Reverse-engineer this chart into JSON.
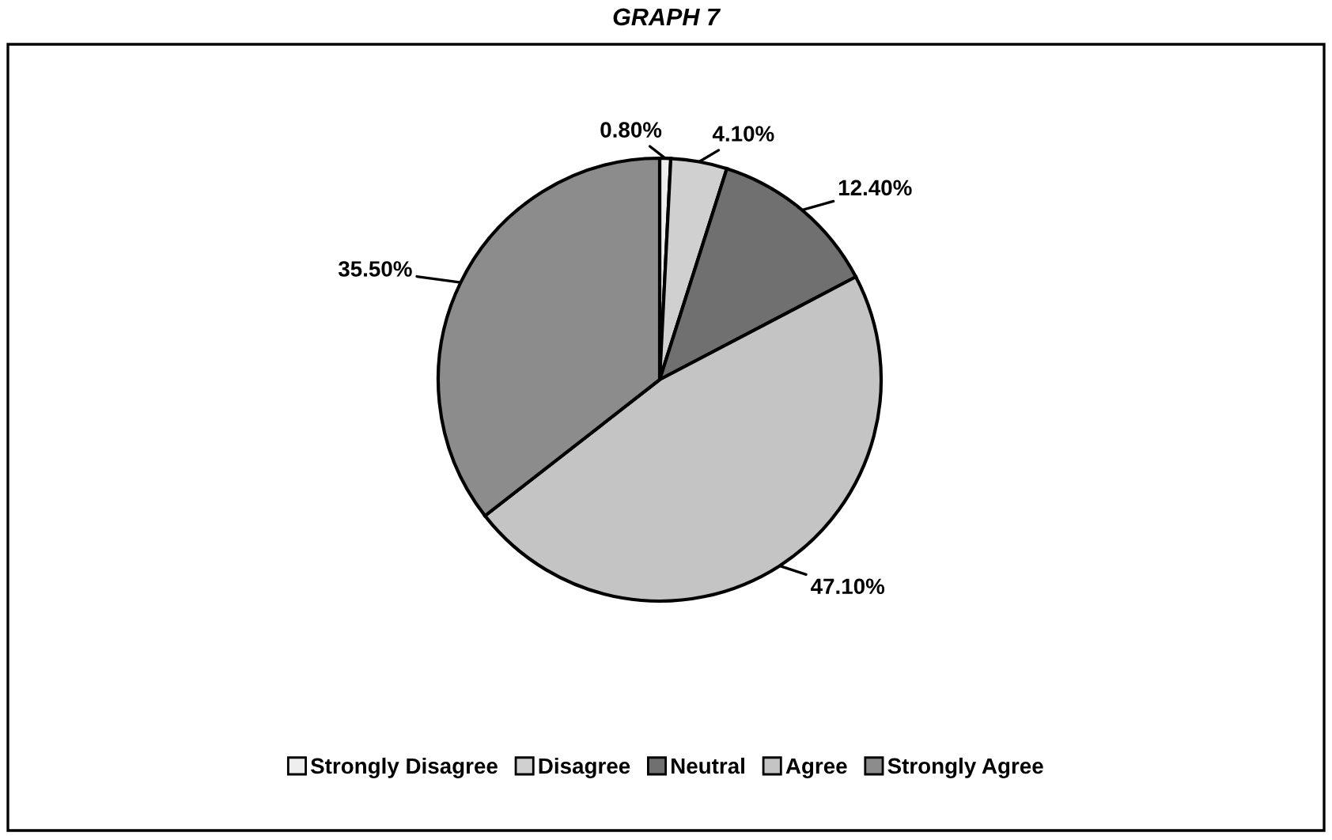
{
  "chart_data": {
    "type": "pie",
    "title": "GRAPH 7",
    "categories": [
      "Strongly Disagree",
      "Disagree",
      "Neutral",
      "Agree",
      "Strongly Agree"
    ],
    "values": [
      0.8,
      4.1,
      12.4,
      47.1,
      35.5
    ],
    "value_labels": [
      "0.80%",
      "4.10%",
      "12.40%",
      "47.10%",
      "35.50%"
    ],
    "colors": [
      "#eeeeee",
      "#d0d0d0",
      "#707070",
      "#c4c4c4",
      "#8c8c8c"
    ],
    "legend": "bottom"
  }
}
